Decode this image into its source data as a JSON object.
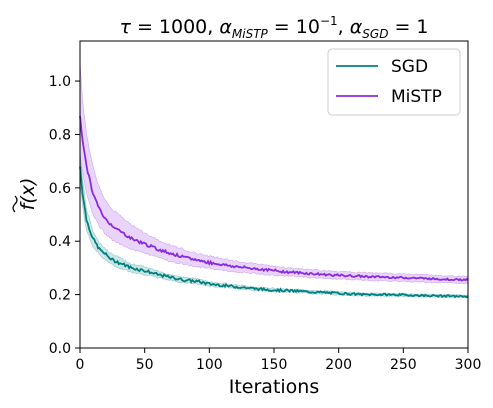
{
  "chart_data": {
    "type": "line",
    "title": {
      "tau": "τ",
      "tau_value": " = 1000, ",
      "alpha": "α",
      "mistp_sub": "MiSTP",
      "mistp_value": " = 10",
      "mistp_exp": "−1",
      "sep": ", ",
      "sgd_sub": "SGD",
      "sgd_value": " = 1"
    },
    "xlabel": "Iterations",
    "ylabel": "f(x)",
    "xlim": [
      0,
      300
    ],
    "ylim": [
      0,
      1.15
    ],
    "x_ticks": [
      0,
      50,
      100,
      150,
      200,
      250,
      300
    ],
    "x_tick_labels": [
      "0",
      "50",
      "100",
      "150",
      "200",
      "250",
      "300"
    ],
    "y_ticks": [
      0.0,
      0.2,
      0.4,
      0.6,
      0.8,
      1.0
    ],
    "y_tick_labels": [
      "0.0",
      "0.2",
      "0.4",
      "0.6",
      "0.8",
      "1.0"
    ],
    "grid": false,
    "legend_position": "top-right",
    "series": [
      {
        "name": "SGD",
        "color": "#008080",
        "x": [
          0,
          2,
          5,
          10,
          15,
          20,
          25,
          30,
          40,
          50,
          60,
          70,
          80,
          90,
          100,
          120,
          140,
          160,
          180,
          200,
          220,
          240,
          260,
          280,
          300
        ],
        "values": [
          0.68,
          0.58,
          0.48,
          0.41,
          0.37,
          0.35,
          0.33,
          0.32,
          0.3,
          0.29,
          0.275,
          0.265,
          0.255,
          0.25,
          0.24,
          0.23,
          0.22,
          0.215,
          0.21,
          0.205,
          0.2,
          0.2,
          0.197,
          0.195,
          0.193
        ],
        "lower": [
          0.62,
          0.53,
          0.44,
          0.38,
          0.35,
          0.33,
          0.31,
          0.3,
          0.285,
          0.275,
          0.263,
          0.254,
          0.245,
          0.24,
          0.232,
          0.223,
          0.214,
          0.209,
          0.204,
          0.199,
          0.195,
          0.195,
          0.192,
          0.19,
          0.188
        ],
        "upper": [
          0.74,
          0.63,
          0.52,
          0.44,
          0.395,
          0.37,
          0.35,
          0.34,
          0.315,
          0.305,
          0.287,
          0.276,
          0.265,
          0.26,
          0.248,
          0.237,
          0.226,
          0.221,
          0.216,
          0.211,
          0.205,
          0.205,
          0.202,
          0.2,
          0.198
        ]
      },
      {
        "name": "MiSTP",
        "color": "#8a2be2",
        "x": [
          0,
          2,
          5,
          10,
          15,
          20,
          25,
          30,
          40,
          50,
          60,
          70,
          80,
          90,
          100,
          120,
          140,
          160,
          180,
          200,
          220,
          240,
          260,
          280,
          300
        ],
        "values": [
          0.87,
          0.78,
          0.68,
          0.58,
          0.52,
          0.48,
          0.46,
          0.44,
          0.41,
          0.39,
          0.37,
          0.355,
          0.34,
          0.33,
          0.32,
          0.305,
          0.295,
          0.285,
          0.278,
          0.272,
          0.268,
          0.265,
          0.262,
          0.258,
          0.255
        ],
        "lower": [
          0.7,
          0.66,
          0.58,
          0.5,
          0.455,
          0.425,
          0.405,
          0.39,
          0.37,
          0.355,
          0.34,
          0.325,
          0.315,
          0.305,
          0.298,
          0.285,
          0.277,
          0.27,
          0.263,
          0.258,
          0.254,
          0.251,
          0.248,
          0.245,
          0.242
        ],
        "upper": [
          1.07,
          0.93,
          0.8,
          0.68,
          0.6,
          0.55,
          0.52,
          0.5,
          0.46,
          0.43,
          0.405,
          0.385,
          0.37,
          0.355,
          0.345,
          0.325,
          0.313,
          0.3,
          0.293,
          0.286,
          0.282,
          0.279,
          0.276,
          0.271,
          0.268
        ]
      }
    ]
  }
}
